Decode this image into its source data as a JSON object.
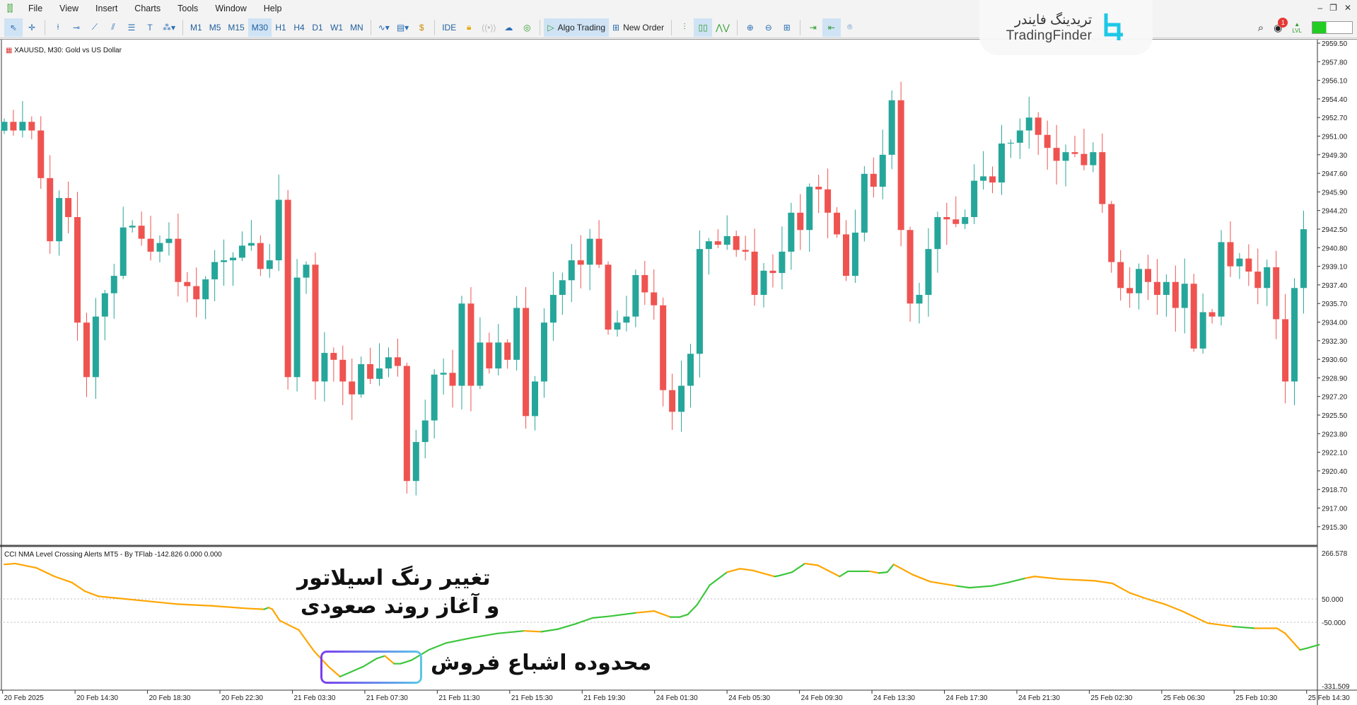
{
  "menu": {
    "items": [
      "File",
      "View",
      "Insert",
      "Charts",
      "Tools",
      "Window",
      "Help"
    ]
  },
  "toolbar": {
    "timeframes": [
      "M1",
      "M5",
      "M15",
      "M30",
      "H1",
      "H4",
      "D1",
      "W1",
      "MN"
    ],
    "active_timeframe": "M30",
    "ide_label": "IDE",
    "algo_trading_label": "Algo Trading",
    "new_order_label": "New Order",
    "notification_count": "1",
    "lvl_label": "LVL"
  },
  "brand": {
    "name_fa": "تریدینگ فایندر",
    "name_en": "TradingFinder",
    "color": "#1ec8e6"
  },
  "chart": {
    "title": "XAUUSD, M30:  Gold vs US Dollar",
    "bull_color": "#26a69a",
    "bear_color": "#ef5350",
    "price_labels": [
      "2959.50",
      "2957.80",
      "2956.10",
      "2954.40",
      "2952.70",
      "2951.00",
      "2949.30",
      "2947.60",
      "2945.90",
      "2944.20",
      "2942.50",
      "2940.80",
      "2939.10",
      "2937.40",
      "2935.70",
      "2934.00",
      "2932.30",
      "2930.60",
      "2928.90",
      "2927.20",
      "2925.50",
      "2923.80",
      "2922.10",
      "2920.40",
      "2918.70",
      "2917.00",
      "2915.30"
    ],
    "first_open": 2951.5,
    "closes": [
      2952.31,
      2951.52,
      2952.31,
      2951.52,
      2947.17,
      2941.4,
      2945.35,
      2943.61,
      2933.97,
      2928.99,
      2934.52,
      2936.65,
      2938.24,
      2942.66,
      2942.82,
      2941.63,
      2940.45,
      2941.24,
      2941.63,
      2937.68,
      2937.3,
      2936.1,
      2937.92,
      2939.5,
      2939.66,
      2939.9,
      2941.0,
      2941.24,
      2938.87,
      2939.66,
      2945.19,
      2928.99,
      2938.08,
      2939.26,
      2928.59,
      2931.2,
      2930.57,
      2928.59,
      2927.41,
      2930.17,
      2928.83,
      2929.78,
      2930.8,
      2930.01,
      2919.5,
      2923.06,
      2925.03,
      2929.22,
      2929.38,
      2928.2,
      2935.71,
      2928.2,
      2932.15,
      2929.78,
      2932.15,
      2930.57,
      2935.31,
      2925.43,
      2928.59,
      2933.97,
      2936.5,
      2937.84,
      2939.66,
      2939.26,
      2941.63,
      2939.26,
      2933.33,
      2933.97,
      2934.52,
      2938.31,
      2936.73,
      2935.55,
      2927.8,
      2925.82,
      2928.2,
      2931.12,
      2940.69,
      2941.4,
      2941.08,
      2941.87,
      2940.61,
      2940.45,
      2936.5,
      2938.71,
      2938.5,
      2940.45,
      2944.01,
      2942.43,
      2946.38,
      2946.14,
      2944.01,
      2942.03,
      2938.24,
      2942.19,
      2947.56,
      2946.38,
      2949.3,
      2954.28,
      2942.43,
      2935.71,
      2936.5,
      2940.69,
      2943.61,
      2943.4,
      2942.98,
      2943.61,
      2946.93,
      2947.33,
      2946.77,
      2950.33,
      2950.4,
      2951.52,
      2952.7,
      2951.12,
      2949.93,
      2948.75,
      2949.54,
      2949.38,
      2948.35,
      2949.54,
      2944.8,
      2939.5,
      2937.13,
      2936.65,
      2938.87,
      2937.68,
      2936.5,
      2937.68,
      2935.31,
      2937.52,
      2931.6,
      2934.92,
      2934.52,
      2941.32,
      2939.11,
      2939.82,
      2938.63,
      2937.13,
      2939.03,
      2934.28,
      2928.59,
      2937.13,
      2942.5
    ]
  },
  "indicator": {
    "title": "CCI NMA Level Crossing Alerts MT5 - By TFlab -142.826 0.000 0.000",
    "labels": {
      "max": "266.578",
      "upper": "50.000",
      "lower": "-50.000",
      "min": "-331.509"
    },
    "levels": [
      50,
      -50
    ],
    "range": [
      -331.509,
      266.578
    ],
    "up_color": "#3cc63c",
    "down_color": "#ffa500",
    "points": [
      [
        0,
        198,
        "g"
      ],
      [
        1.2,
        201.7,
        "o"
      ],
      [
        3.5,
        183.2,
        "o"
      ],
      [
        5.5,
        146.2,
        "o"
      ],
      [
        7.4,
        120.3,
        "o"
      ],
      [
        8.8,
        83.3,
        "o"
      ],
      [
        10.3,
        61.1,
        "o"
      ],
      [
        12.2,
        53.7,
        "o"
      ],
      [
        15.1,
        42.6,
        "o"
      ],
      [
        18.9,
        27.8,
        "o"
      ],
      [
        22.7,
        20.4,
        "o"
      ],
      [
        26.5,
        9.3,
        "o"
      ],
      [
        28.4,
        5.6,
        "o"
      ],
      [
        28.9,
        13,
        "g"
      ],
      [
        29.3,
        5.6,
        "o"
      ],
      [
        30.1,
        -42.5,
        "o"
      ],
      [
        32.2,
        -83.2,
        "o"
      ],
      [
        33.9,
        -175.7,
        "o"
      ],
      [
        35.5,
        -242.3,
        "o"
      ],
      [
        36.7,
        -283,
        "o"
      ],
      [
        37.8,
        -264.5,
        "g"
      ],
      [
        39.3,
        -238.6,
        "g"
      ],
      [
        40.7,
        -205.3,
        "g"
      ],
      [
        41.6,
        -194.2,
        "g"
      ],
      [
        42.6,
        -227.5,
        "o"
      ],
      [
        43.3,
        -227.5,
        "g"
      ],
      [
        44.5,
        -212.7,
        "g"
      ],
      [
        46.4,
        -168.3,
        "g"
      ],
      [
        48.3,
        -138.7,
        "g"
      ],
      [
        51.1,
        -116.5,
        "g"
      ],
      [
        53.9,
        -98,
        "g"
      ],
      [
        56.8,
        -86.9,
        "g"
      ],
      [
        58.7,
        -90.6,
        "o"
      ],
      [
        60.5,
        -79.5,
        "g"
      ],
      [
        62.4,
        -57.3,
        "g"
      ],
      [
        64.3,
        -31.4,
        "g"
      ],
      [
        66.2,
        -24,
        "g"
      ],
      [
        69.1,
        -9.2,
        "g"
      ],
      [
        71,
        -1.8,
        "o"
      ],
      [
        72.8,
        -27.7,
        "o"
      ],
      [
        73.8,
        -27.7,
        "g"
      ],
      [
        74.7,
        -16.6,
        "g"
      ],
      [
        75.7,
        24.1,
        "g"
      ],
      [
        77.1,
        109.2,
        "g"
      ],
      [
        79,
        164.7,
        "g"
      ],
      [
        80.4,
        179.5,
        "o"
      ],
      [
        81.8,
        172.1,
        "o"
      ],
      [
        84.2,
        146.2,
        "o"
      ],
      [
        84.7,
        149.9,
        "g"
      ],
      [
        86.1,
        164.7,
        "g"
      ],
      [
        87.5,
        201.7,
        "g"
      ],
      [
        88.9,
        194.3,
        "o"
      ],
      [
        91.3,
        146.2,
        "o"
      ],
      [
        92.2,
        168.4,
        "g"
      ],
      [
        94.6,
        168.4,
        "g"
      ],
      [
        95.6,
        161,
        "o"
      ],
      [
        96.5,
        164.7,
        "g"
      ],
      [
        97.2,
        198,
        "g"
      ],
      [
        99.3,
        153.6,
        "o"
      ],
      [
        101.2,
        124,
        "o"
      ],
      [
        104.1,
        105.5,
        "o"
      ],
      [
        105.5,
        98.1,
        "g"
      ],
      [
        107.9,
        105.5,
        "g"
      ],
      [
        109.7,
        120.3,
        "g"
      ],
      [
        111.6,
        138.8,
        "g"
      ],
      [
        112.6,
        146.2,
        "o"
      ],
      [
        115.4,
        135.1,
        "o"
      ],
      [
        119.2,
        127.7,
        "o"
      ],
      [
        121.1,
        116.6,
        "o"
      ],
      [
        123,
        75.9,
        "o"
      ],
      [
        124.9,
        50,
        "o"
      ],
      [
        126.8,
        27.8,
        "o"
      ],
      [
        128.7,
        -1.8,
        "o"
      ],
      [
        130.1,
        -27.7,
        "o"
      ],
      [
        131.5,
        -53.6,
        "o"
      ],
      [
        134.3,
        -68.4,
        "o"
      ],
      [
        136.7,
        -75.8,
        "g"
      ],
      [
        139.1,
        -75.8,
        "o"
      ],
      [
        140,
        -98,
        "o"
      ],
      [
        141.6,
        -168.3,
        "o"
      ],
      [
        142.4,
        -160.9,
        "g"
      ],
      [
        143.7,
        -146.1,
        "g"
      ]
    ]
  },
  "time_labels": [
    "20 Feb 2025",
    "20 Feb 14:30",
    "20 Feb 18:30",
    "20 Feb 22:30",
    "21 Feb 03:30",
    "21 Feb 07:30",
    "21 Feb 11:30",
    "21 Feb 15:30",
    "21 Feb 19:30",
    "24 Feb 01:30",
    "24 Feb 05:30",
    "24 Feb 09:30",
    "24 Feb 13:30",
    "24 Feb 17:30",
    "24 Feb 21:30",
    "25 Feb 02:30",
    "25 Feb 06:30",
    "25 Feb 10:30",
    "25 Feb 14:30"
  ],
  "annotations": {
    "color_change_line1": "تغییر رنگ اسیلاتور",
    "color_change_line2": "و آغاز روند صعودی",
    "oversold_zone": "محدوده اشباع فروش"
  }
}
